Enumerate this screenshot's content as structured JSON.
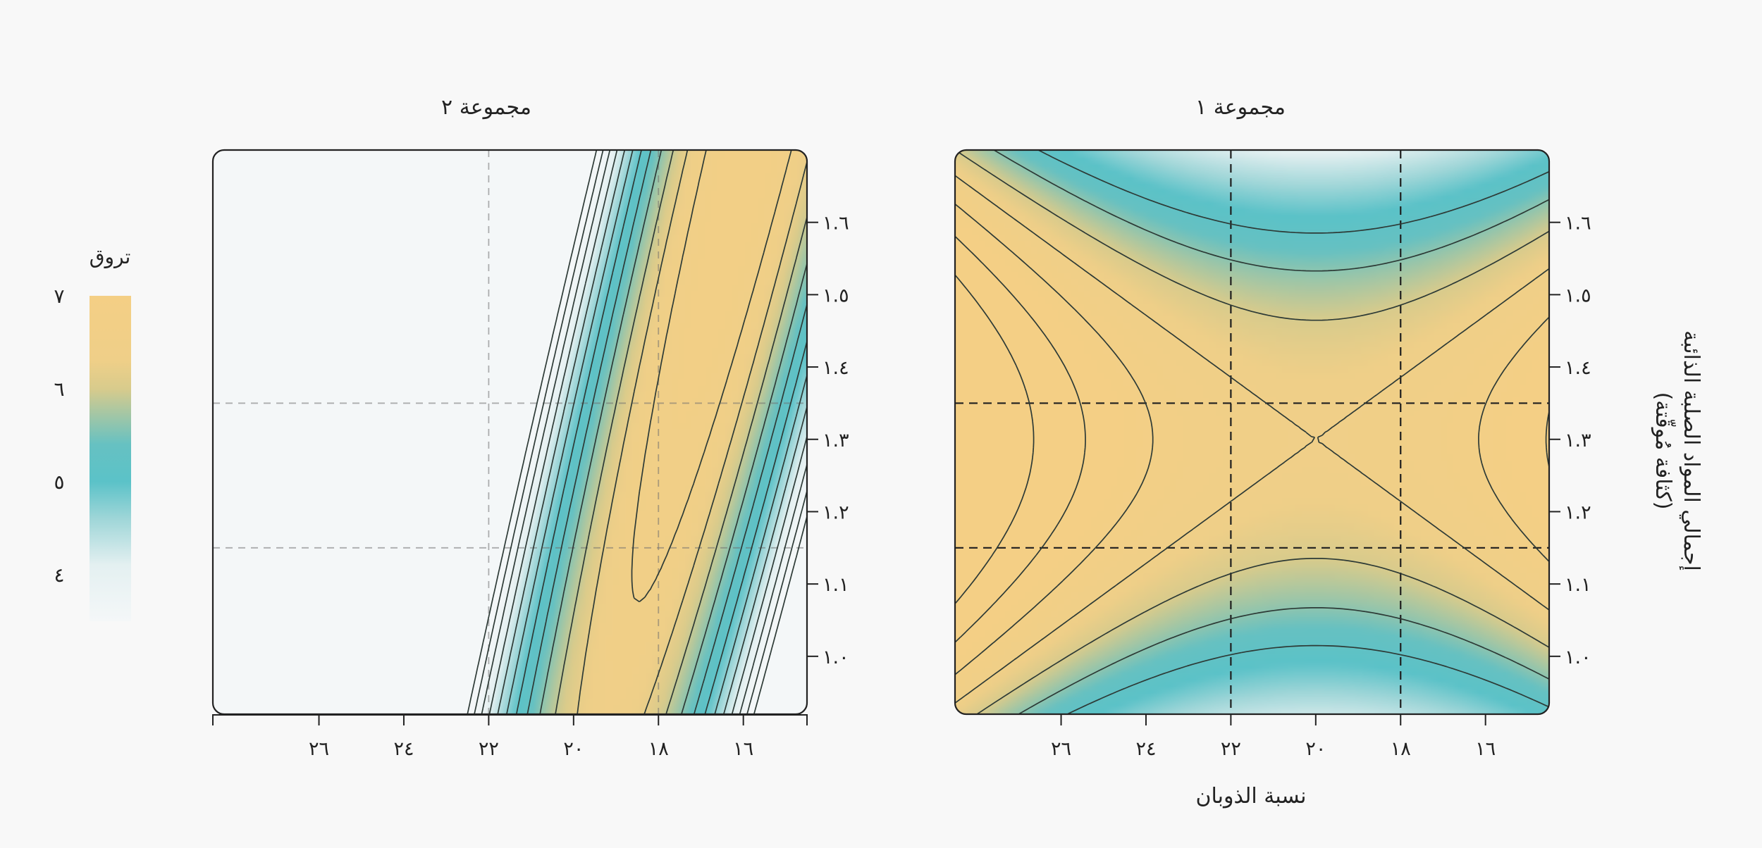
{
  "chart_data": {
    "type": "heatmap",
    "subtype": "filled-contour",
    "xlabel": "نسبة الذوبان",
    "ylabel": "إجمالي المواد الصلبة الذائبة",
    "ylabel_sub": "(كثافة مُوقّتة)",
    "x_axis": {
      "direction": "reversed",
      "range": [
        28.5,
        14.5
      ],
      "ticks": [
        26,
        24,
        22,
        20,
        18,
        16
      ],
      "tick_labels": [
        "٢٦",
        "٢٤",
        "٢٢",
        "٢٠",
        "١٨",
        "١٦"
      ]
    },
    "y_axis": {
      "range": [
        0.92,
        1.7
      ],
      "ticks": [
        1.0,
        1.1,
        1.2,
        1.3,
        1.4,
        1.5,
        1.6
      ],
      "tick_labels": [
        "١.٠",
        "١.١",
        "١.٢",
        "١.٣",
        "١.٤",
        "١.٥",
        "١.٦"
      ],
      "position": "right"
    },
    "reference_lines": {
      "x": [
        22,
        18
      ],
      "y": [
        1.35,
        1.15
      ]
    },
    "grid": false,
    "colorbar": {
      "title": "تروق",
      "range": [
        3.5,
        7.0
      ],
      "ticks": [
        7,
        6,
        5,
        4
      ],
      "tick_labels": [
        "٧",
        "٦",
        "٥",
        "٤"
      ],
      "placement": "left",
      "stops": [
        {
          "value": 3.5,
          "color": "#f4f7f8"
        },
        {
          "value": 4.1,
          "color": "#e4f0f1"
        },
        {
          "value": 4.6,
          "color": "#9fd6d8"
        },
        {
          "value": 5.0,
          "color": "#5bc2c8"
        },
        {
          "value": 5.4,
          "color": "#66c1c2"
        },
        {
          "value": 6.0,
          "color": "#d8cb8c"
        },
        {
          "value": 6.3,
          "color": "#efcf88"
        },
        {
          "value": 7.0,
          "color": "#f4cf85"
        }
      ]
    },
    "panels": [
      {
        "title": "مجموعة ١",
        "model": "saddle",
        "center": [
          20,
          1.3
        ],
        "contour_levels": [
          5.2,
          5.6,
          6.0,
          6.4,
          6.8,
          7.2,
          7.6
        ]
      },
      {
        "title": "مجموعة ٢",
        "model": "diagonal-ridge",
        "peak": [
          19,
          0.95
        ],
        "contour_levels": [
          3.2,
          3.5,
          3.8,
          4.1,
          4.4,
          4.7,
          5.0,
          5.3,
          5.6,
          5.9,
          6.2,
          6.5,
          6.8,
          7.1
        ]
      }
    ]
  }
}
